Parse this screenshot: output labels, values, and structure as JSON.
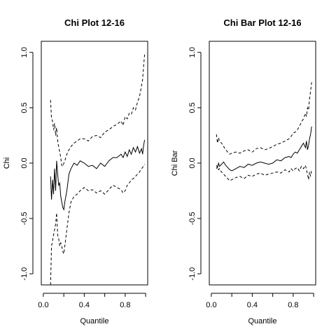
{
  "chart_data": [
    {
      "type": "line",
      "title": "Chi Plot 12-16",
      "xlabel": "Quantile",
      "ylabel": "Chi",
      "xlim": [
        -0.02,
        1.02
      ],
      "ylim": [
        -1.1,
        1.1
      ],
      "xticks": [
        0.0,
        0.4,
        0.8
      ],
      "xtick_labels": [
        "0.0",
        "0.4",
        "0.8"
      ],
      "yticks": [
        -1.0,
        -0.5,
        0.0,
        0.5,
        1.0
      ],
      "ytick_labels": [
        "-1.0",
        "-0.5",
        "0.0",
        "0.5",
        "1.0"
      ],
      "grid": false,
      "legend": "none",
      "series": [
        {
          "style": "solid",
          "x": [
            0.07,
            0.08,
            0.09,
            0.1,
            0.11,
            0.12,
            0.13,
            0.14,
            0.15,
            0.16,
            0.17,
            0.18,
            0.19,
            0.2,
            0.21,
            0.23,
            0.25,
            0.27,
            0.3,
            0.33,
            0.36,
            0.4,
            0.44,
            0.48,
            0.52,
            0.56,
            0.6,
            0.64,
            0.68,
            0.72,
            0.76,
            0.78,
            0.8,
            0.82,
            0.84,
            0.86,
            0.88,
            0.9,
            0.92,
            0.94,
            0.96,
            0.97,
            0.98,
            0.99
          ],
          "y": [
            -0.12,
            -0.33,
            -0.15,
            -0.28,
            -0.05,
            -0.25,
            0.02,
            -0.1,
            -0.2,
            -0.18,
            -0.3,
            -0.35,
            -0.4,
            -0.42,
            -0.35,
            -0.25,
            -0.1,
            -0.05,
            0.0,
            -0.02,
            0.02,
            0.0,
            -0.03,
            -0.02,
            -0.05,
            0.0,
            -0.03,
            0.02,
            0.05,
            0.05,
            0.08,
            0.05,
            0.1,
            0.06,
            0.12,
            0.08,
            0.14,
            0.1,
            0.15,
            0.09,
            0.13,
            0.08,
            0.16,
            0.21
          ]
        },
        {
          "style": "dashed",
          "x": [
            0.07,
            0.08,
            0.09,
            0.1,
            0.11,
            0.12,
            0.13,
            0.14,
            0.15,
            0.16,
            0.17,
            0.18,
            0.19,
            0.2,
            0.21,
            0.23,
            0.25,
            0.27,
            0.3,
            0.33,
            0.36,
            0.4,
            0.44,
            0.48,
            0.52,
            0.56,
            0.6,
            0.64,
            0.68,
            0.72,
            0.76,
            0.78,
            0.8,
            0.82,
            0.84,
            0.86,
            0.88,
            0.9,
            0.92,
            0.94,
            0.96,
            0.97,
            0.98,
            0.99
          ],
          "y": [
            0.57,
            0.4,
            0.38,
            0.3,
            0.36,
            0.25,
            0.32,
            0.2,
            0.15,
            0.1,
            0.05,
            -0.02,
            -0.03,
            0.0,
            0.02,
            0.08,
            0.12,
            0.15,
            0.18,
            0.2,
            0.22,
            0.22,
            0.2,
            0.24,
            0.25,
            0.23,
            0.28,
            0.3,
            0.33,
            0.35,
            0.38,
            0.34,
            0.42,
            0.4,
            0.45,
            0.44,
            0.5,
            0.48,
            0.55,
            0.6,
            0.7,
            0.75,
            0.88,
            0.98
          ]
        },
        {
          "style": "dashed",
          "x": [
            0.07,
            0.08,
            0.09,
            0.1,
            0.11,
            0.12,
            0.13,
            0.14,
            0.15,
            0.16,
            0.17,
            0.18,
            0.19,
            0.2,
            0.21,
            0.23,
            0.25,
            0.27,
            0.3,
            0.33,
            0.36,
            0.4,
            0.44,
            0.48,
            0.52,
            0.56,
            0.6,
            0.64,
            0.68,
            0.72,
            0.76,
            0.78,
            0.8,
            0.82,
            0.84,
            0.86,
            0.88,
            0.9,
            0.92,
            0.94,
            0.96,
            0.97,
            0.98,
            0.99
          ],
          "y": [
            -1.1,
            -0.75,
            -0.7,
            -0.65,
            -0.6,
            -0.55,
            -0.45,
            -0.65,
            -0.68,
            -0.75,
            -0.72,
            -0.75,
            -0.8,
            -0.82,
            -0.75,
            -0.6,
            -0.45,
            -0.35,
            -0.3,
            -0.28,
            -0.25,
            -0.22,
            -0.25,
            -0.24,
            -0.27,
            -0.25,
            -0.28,
            -0.24,
            -0.2,
            -0.22,
            -0.24,
            -0.27,
            -0.25,
            -0.2,
            -0.18,
            -0.15,
            -0.14,
            -0.12,
            -0.1,
            -0.08,
            -0.05,
            -0.04,
            -0.02,
            -0.01
          ]
        }
      ]
    },
    {
      "type": "line",
      "title": "Chi Bar Plot 12-16",
      "xlabel": "Quantile",
      "ylabel": "Chi Bar",
      "xlim": [
        -0.02,
        1.02
      ],
      "ylim": [
        -1.1,
        1.1
      ],
      "xticks": [
        0.0,
        0.4,
        0.8
      ],
      "xtick_labels": [
        "0.0",
        "0.4",
        "0.8"
      ],
      "yticks": [
        -1.0,
        -0.5,
        0.0,
        0.5,
        1.0
      ],
      "ytick_labels": [
        "-1.0",
        "-0.5",
        "0.0",
        "0.5",
        "1.0"
      ],
      "grid": false,
      "legend": "none",
      "series": [
        {
          "style": "solid",
          "x": [
            0.05,
            0.06,
            0.07,
            0.08,
            0.1,
            0.12,
            0.14,
            0.16,
            0.18,
            0.2,
            0.24,
            0.28,
            0.32,
            0.36,
            0.4,
            0.44,
            0.48,
            0.52,
            0.56,
            0.6,
            0.64,
            0.68,
            0.72,
            0.76,
            0.78,
            0.8,
            0.82,
            0.84,
            0.86,
            0.88,
            0.9,
            0.92,
            0.93,
            0.94,
            0.95,
            0.96,
            0.97,
            0.98
          ],
          "y": [
            -0.02,
            -0.04,
            0.0,
            -0.03,
            -0.01,
            0.01,
            -0.02,
            -0.04,
            -0.06,
            -0.07,
            -0.05,
            -0.03,
            -0.04,
            -0.01,
            -0.02,
            0.0,
            0.01,
            0.0,
            -0.01,
            0.0,
            0.03,
            0.02,
            0.05,
            0.06,
            0.05,
            0.08,
            0.1,
            0.09,
            0.12,
            0.15,
            0.18,
            0.14,
            0.2,
            0.12,
            0.16,
            0.22,
            0.26,
            0.33
          ]
        },
        {
          "style": "dashed",
          "x": [
            0.05,
            0.06,
            0.07,
            0.08,
            0.1,
            0.12,
            0.14,
            0.16,
            0.18,
            0.2,
            0.24,
            0.28,
            0.32,
            0.36,
            0.4,
            0.44,
            0.48,
            0.52,
            0.56,
            0.6,
            0.64,
            0.68,
            0.72,
            0.76,
            0.78,
            0.8,
            0.82,
            0.84,
            0.86,
            0.88,
            0.9,
            0.92,
            0.93,
            0.94,
            0.95,
            0.96,
            0.97,
            0.98
          ],
          "y": [
            0.26,
            0.18,
            0.23,
            0.2,
            0.18,
            0.15,
            0.12,
            0.1,
            0.08,
            0.09,
            0.1,
            0.09,
            0.11,
            0.12,
            0.1,
            0.13,
            0.14,
            0.12,
            0.13,
            0.15,
            0.17,
            0.18,
            0.2,
            0.22,
            0.24,
            0.27,
            0.28,
            0.3,
            0.33,
            0.37,
            0.4,
            0.45,
            0.42,
            0.5,
            0.48,
            0.58,
            0.65,
            0.73
          ]
        },
        {
          "style": "dashed",
          "x": [
            0.05,
            0.06,
            0.07,
            0.08,
            0.1,
            0.12,
            0.14,
            0.16,
            0.18,
            0.2,
            0.24,
            0.28,
            0.32,
            0.36,
            0.4,
            0.44,
            0.48,
            0.52,
            0.56,
            0.6,
            0.64,
            0.68,
            0.72,
            0.76,
            0.78,
            0.8,
            0.82,
            0.84,
            0.86,
            0.88,
            0.9,
            0.92,
            0.93,
            0.94,
            0.95,
            0.96,
            0.97,
            0.98
          ],
          "y": [
            -0.05,
            -0.03,
            -0.06,
            -0.05,
            -0.08,
            -0.1,
            -0.12,
            -0.14,
            -0.16,
            -0.15,
            -0.13,
            -0.12,
            -0.14,
            -0.11,
            -0.12,
            -0.1,
            -0.09,
            -0.11,
            -0.1,
            -0.09,
            -0.08,
            -0.09,
            -0.06,
            -0.08,
            -0.05,
            -0.07,
            -0.05,
            -0.04,
            -0.07,
            -0.03,
            -0.05,
            -0.02,
            -0.06,
            -0.1,
            -0.15,
            -0.08,
            -0.12,
            -0.06
          ]
        }
      ]
    }
  ]
}
